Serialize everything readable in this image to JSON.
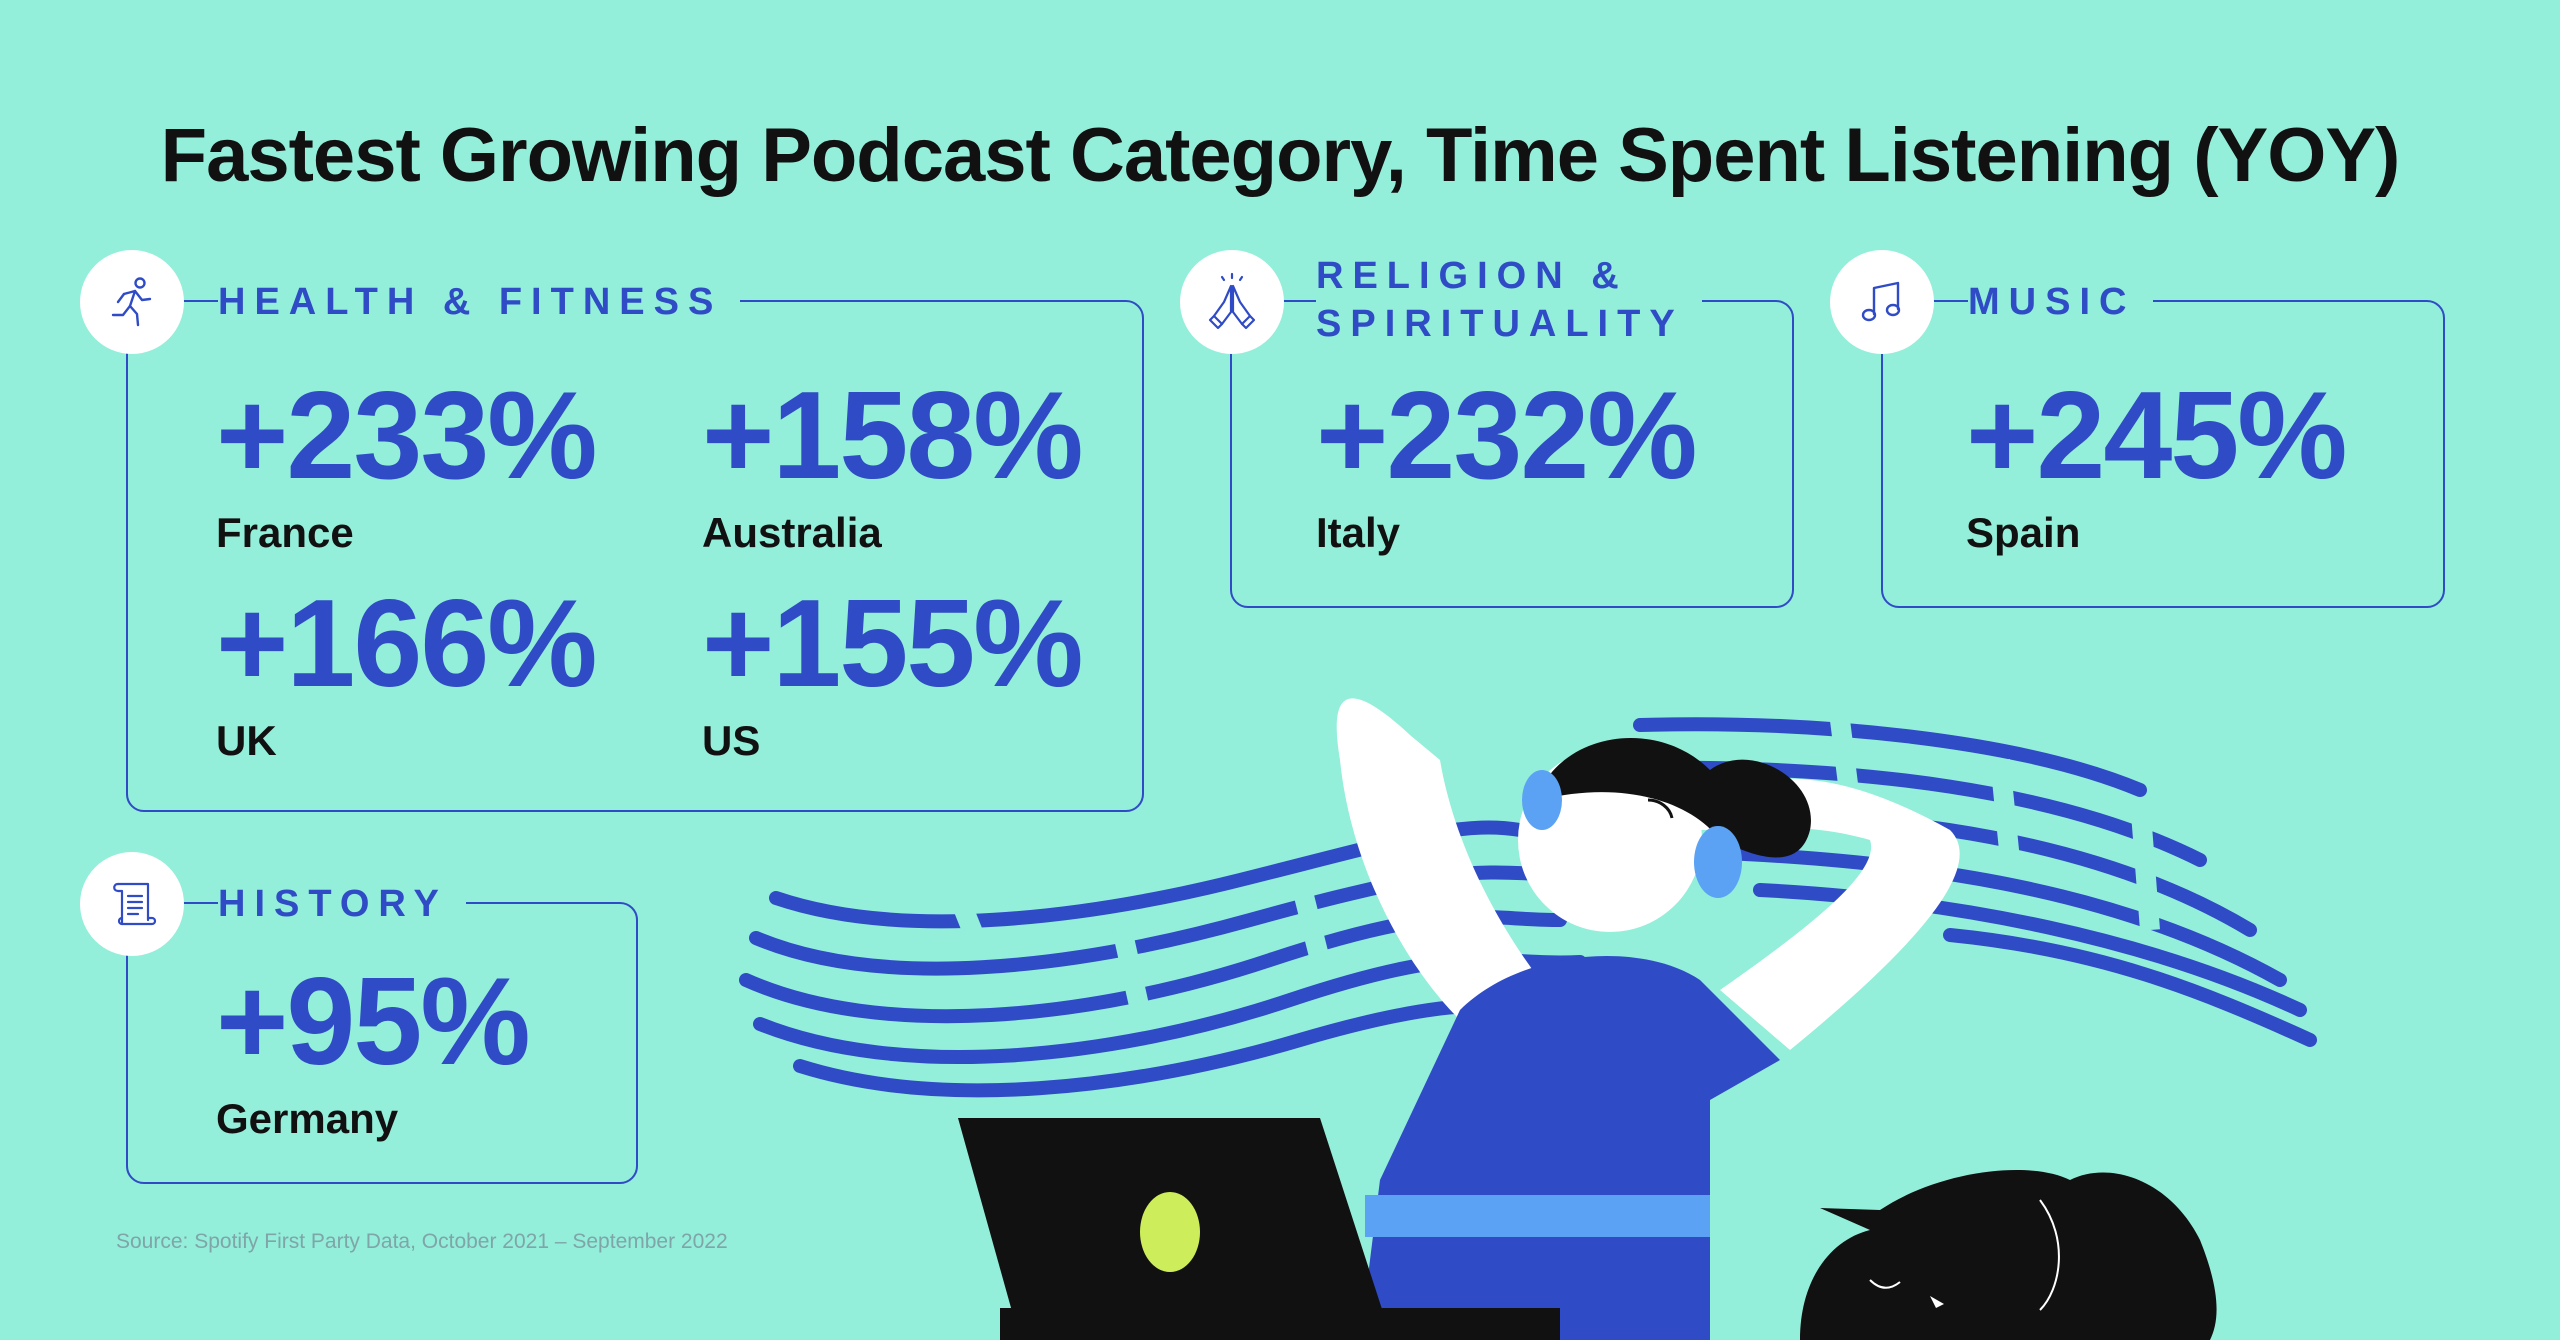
{
  "title": "Fastest Growing Podcast Category, Time Spent Listening (YOY)",
  "categories": [
    {
      "name": "HEALTH & FITNESS",
      "icon": "running-person-icon",
      "stats": [
        {
          "value": "+233%",
          "country": "France"
        },
        {
          "value": "+158%",
          "country": "Australia"
        },
        {
          "value": "+166%",
          "country": "UK"
        },
        {
          "value": "+155%",
          "country": "US"
        }
      ]
    },
    {
      "name_line1": "RELIGION &",
      "name_line2": "SPIRITUALITY",
      "icon": "praying-hands-icon",
      "stats": [
        {
          "value": "+232%",
          "country": "Italy"
        }
      ]
    },
    {
      "name": "MUSIC",
      "icon": "music-note-icon",
      "stats": [
        {
          "value": "+245%",
          "country": "Spain"
        }
      ]
    },
    {
      "name": "HISTORY",
      "icon": "scroll-icon",
      "stats": [
        {
          "value": "+95%",
          "country": "Germany"
        }
      ]
    }
  ],
  "source": "Source: Spotify First Party Data, October 2021 – September 2022",
  "colors": {
    "background": "#93EEDA",
    "accent": "#2F4BC5",
    "text": "#111111",
    "light_blue": "#5BA2F4",
    "lime": "#CDEE5A"
  }
}
